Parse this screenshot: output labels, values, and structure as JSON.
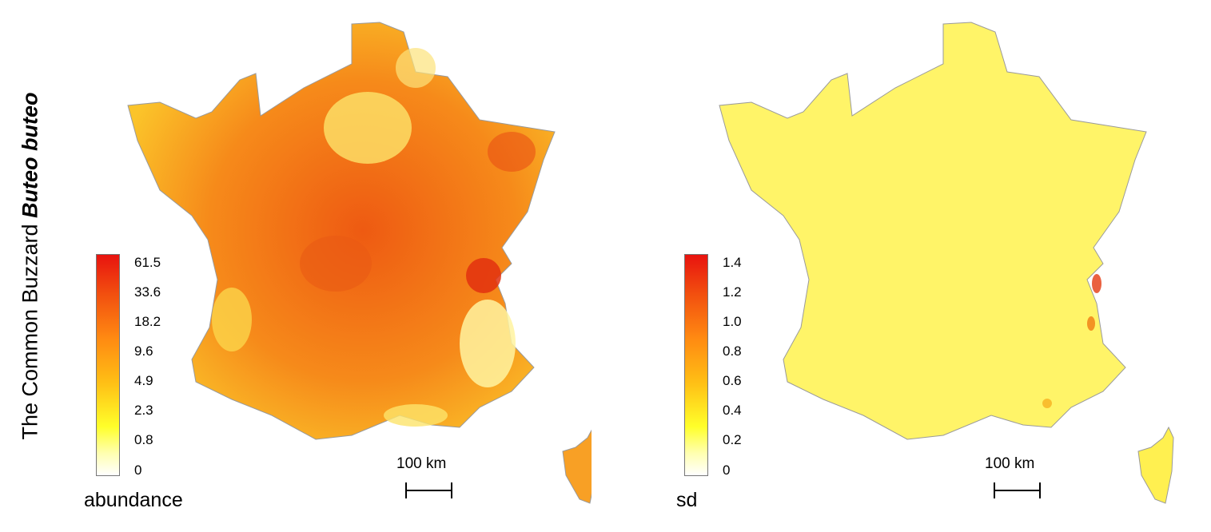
{
  "title": {
    "prefix": "The Common Buzzard ",
    "species": "Buteo buteo"
  },
  "panels": [
    {
      "legend_title": "abundance",
      "ticks": [
        "61.5",
        "33.6",
        "18.2",
        "9.6",
        "4.9",
        "2.3",
        "0.8",
        "0"
      ],
      "scale_label": "100 km",
      "colors": {
        "high": "#e8130f",
        "mid": "#ff9a10",
        "low": "#ffff2a",
        "zero": "#ffffff"
      },
      "map_fill": "#f57e18"
    },
    {
      "legend_title": "sd",
      "ticks": [
        "1.4",
        "1.2",
        "1.0",
        "0.8",
        "0.6",
        "0.4",
        "0.2",
        "0"
      ],
      "scale_label": "100 km",
      "colors": {
        "high": "#e8130f",
        "mid": "#ff9a10",
        "low": "#ffff2a",
        "zero": "#ffffff"
      },
      "map_fill": "#fff65a"
    }
  ]
}
